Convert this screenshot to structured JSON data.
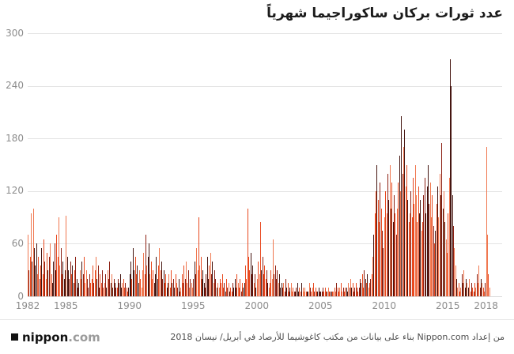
{
  "header": {
    "title": "عدد ثورات بركان ساكوراجيما شهرياً"
  },
  "footer": {
    "logo_name": "nippon",
    "logo_tld": ".com",
    "credit": "من إعداد  Nippon.com بناء على بيانات من مكتب كاغوشيما للأرصاد في أبريل/ نيسان 2018"
  },
  "chart_data": {
    "type": "bar",
    "title": "عدد ثورات بركان ساكوراجيما شهرياً",
    "xlabel": "",
    "ylabel": "",
    "ylim": [
      0,
      300
    ],
    "y_ticks": [
      0,
      60,
      120,
      180,
      240,
      300
    ],
    "x_start_year": 1982,
    "x_tick_labels": [
      "1982",
      "1985",
      "1990",
      "1995",
      "2000",
      "2005",
      "2010",
      "2015",
      "2018"
    ],
    "grid": "horizontal",
    "legend": "none",
    "bar_colors": [
      "#e8491f",
      "#8c2013",
      "#451510",
      "#f07850"
    ],
    "values": [
      70,
      30,
      45,
      95,
      40,
      100,
      55,
      35,
      60,
      25,
      45,
      20,
      35,
      55,
      25,
      65,
      40,
      20,
      50,
      30,
      45,
      60,
      25,
      15,
      40,
      60,
      30,
      70,
      45,
      90,
      35,
      55,
      25,
      40,
      20,
      30,
      92,
      45,
      30,
      20,
      40,
      25,
      35,
      15,
      30,
      45,
      20,
      10,
      15,
      30,
      20,
      40,
      25,
      45,
      15,
      30,
      20,
      10,
      25,
      15,
      20,
      35,
      15,
      30,
      45,
      20,
      35,
      10,
      25,
      15,
      30,
      10,
      15,
      25,
      10,
      30,
      20,
      40,
      15,
      25,
      10,
      20,
      15,
      10,
      10,
      20,
      15,
      25,
      10,
      15,
      20,
      10,
      15,
      10,
      5,
      10,
      25,
      40,
      20,
      55,
      30,
      45,
      25,
      35,
      15,
      30,
      20,
      10,
      30,
      50,
      25,
      70,
      35,
      45,
      60,
      25,
      40,
      20,
      30,
      15,
      25,
      45,
      20,
      35,
      55,
      30,
      40,
      20,
      30,
      15,
      25,
      10,
      15,
      25,
      10,
      30,
      15,
      20,
      10,
      25,
      15,
      10,
      20,
      5,
      10,
      25,
      15,
      35,
      20,
      40,
      15,
      30,
      10,
      20,
      15,
      10,
      20,
      40,
      25,
      55,
      30,
      90,
      35,
      45,
      20,
      30,
      15,
      10,
      25,
      45,
      20,
      35,
      50,
      25,
      40,
      15,
      30,
      20,
      10,
      15,
      10,
      20,
      15,
      25,
      10,
      15,
      5,
      20,
      10,
      15,
      5,
      10,
      5,
      15,
      10,
      20,
      10,
      25,
      15,
      10,
      20,
      5,
      15,
      10,
      15,
      35,
      20,
      100,
      45,
      30,
      50,
      25,
      35,
      15,
      25,
      10,
      20,
      40,
      25,
      85,
      30,
      45,
      25,
      35,
      20,
      30,
      15,
      10,
      15,
      30,
      20,
      65,
      25,
      35,
      20,
      30,
      15,
      25,
      10,
      15,
      10,
      15,
      5,
      20,
      10,
      15,
      5,
      10,
      15,
      5,
      10,
      5,
      5,
      10,
      15,
      5,
      10,
      5,
      15,
      10,
      5,
      10,
      5,
      5,
      5,
      15,
      10,
      5,
      10,
      15,
      5,
      10,
      5,
      5,
      10,
      5,
      5,
      5,
      10,
      5,
      10,
      5,
      5,
      10,
      5,
      5,
      5,
      5,
      5,
      10,
      5,
      15,
      10,
      5,
      10,
      15,
      5,
      10,
      5,
      10,
      10,
      5,
      15,
      10,
      20,
      10,
      15,
      5,
      10,
      15,
      10,
      5,
      10,
      20,
      15,
      25,
      10,
      30,
      20,
      15,
      25,
      10,
      15,
      20,
      25,
      45,
      70,
      95,
      120,
      150,
      110,
      85,
      130,
      100,
      75,
      55,
      90,
      120,
      95,
      140,
      110,
      150,
      100,
      130,
      85,
      115,
      95,
      70,
      100,
      130,
      160,
      120,
      205,
      140,
      170,
      190,
      125,
      150,
      110,
      85,
      95,
      120,
      90,
      135,
      105,
      150,
      115,
      85,
      125,
      95,
      110,
      75,
      85,
      115,
      135,
      95,
      125,
      150,
      105,
      130,
      90,
      115,
      80,
      60,
      75,
      105,
      125,
      90,
      140,
      115,
      175,
      100,
      120,
      85,
      65,
      50,
      95,
      135,
      270,
      240,
      115,
      80,
      55,
      35,
      20,
      10,
      15,
      5,
      10,
      25,
      15,
      30,
      10,
      20,
      15,
      10,
      20,
      5,
      15,
      10,
      5,
      15,
      10,
      25,
      15,
      35,
      10,
      20,
      15,
      10,
      5,
      15,
      170,
      70,
      25,
      10
    ]
  }
}
